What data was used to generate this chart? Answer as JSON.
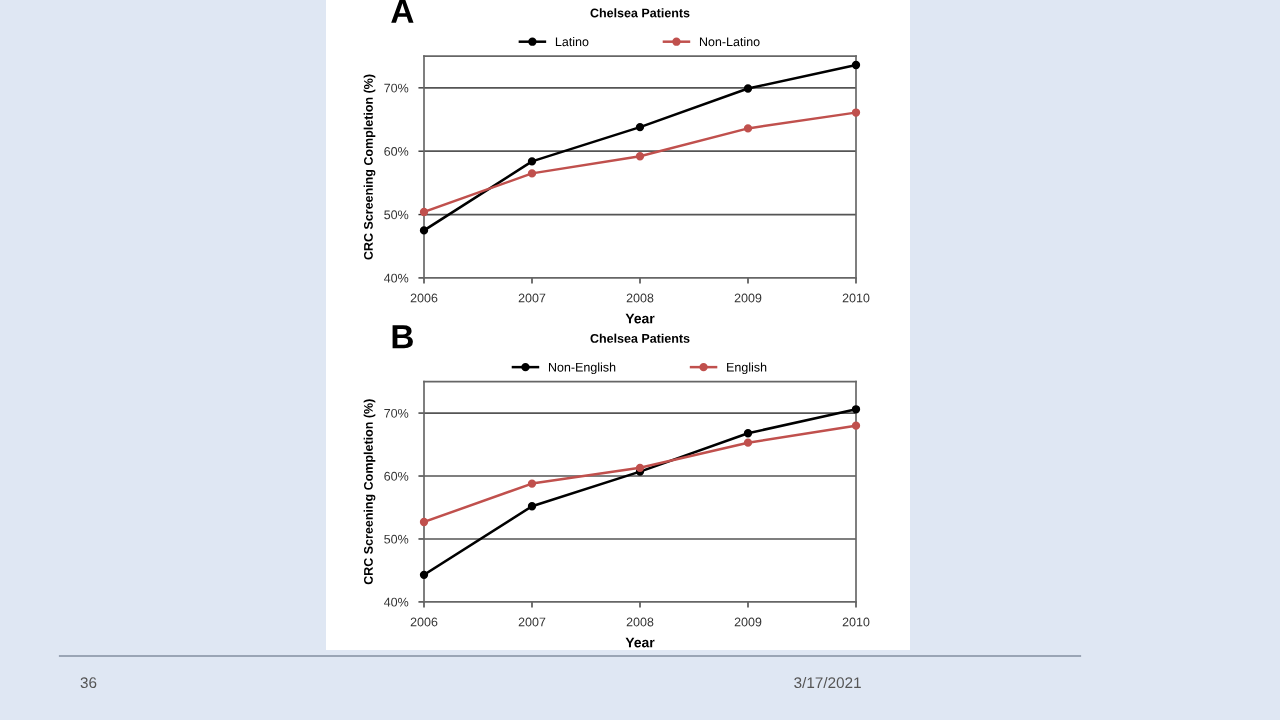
{
  "chart_data": [
    {
      "type": "line",
      "title": "Chelsea Patients",
      "subtitle": "A",
      "xlabel": "Year",
      "ylabel": "CRC Screening Completion (%)",
      "x": [
        2006,
        2007,
        2008,
        2009,
        2010
      ],
      "series": [
        {
          "name": "Latino",
          "color": "#000000",
          "values": [
            47.5,
            58.4,
            63.8,
            69.9,
            73.6
          ]
        },
        {
          "name": "Non-Latino",
          "color": "#c0504d",
          "values": [
            50.4,
            56.5,
            59.2,
            63.6,
            66.1
          ]
        }
      ],
      "xlim": [
        2006,
        2010
      ],
      "xticks": [
        2006,
        2007,
        2008,
        2009,
        2010
      ],
      "ylim": [
        40,
        75
      ],
      "yticks": [
        {
          "value": 40,
          "label": "40%"
        },
        {
          "value": 50,
          "label": "50%"
        },
        {
          "value": 60,
          "label": "60%"
        },
        {
          "value": 70,
          "label": "70%"
        }
      ],
      "grid": "y",
      "legend": "top",
      "marker": "circle",
      "line_style": "solid"
    },
    {
      "type": "line",
      "title": "Chelsea Patients",
      "subtitle": "B",
      "xlabel": "Year",
      "ylabel": "CRC Screening Completion (%)",
      "x": [
        2006,
        2007,
        2008,
        2009,
        2010
      ],
      "series": [
        {
          "name": "Non-English",
          "color": "#000000",
          "values": [
            44.3,
            55.2,
            60.7,
            66.8,
            70.6
          ]
        },
        {
          "name": "English",
          "color": "#c0504d",
          "values": [
            52.7,
            58.8,
            61.3,
            65.3,
            68.0
          ]
        }
      ],
      "xlim": [
        2006,
        2010
      ],
      "xticks": [
        2006,
        2007,
        2008,
        2009,
        2010
      ],
      "ylim": [
        40,
        75
      ],
      "yticks": [
        {
          "value": 40,
          "label": "40%"
        },
        {
          "value": 50,
          "label": "50%"
        },
        {
          "value": 60,
          "label": "60%"
        },
        {
          "value": 70,
          "label": "70%"
        }
      ],
      "grid": "y",
      "legend": "top",
      "marker": "circle",
      "line_style": "solid",
      "annotations": [
        "36",
        "3/17/2021"
      ]
    }
  ]
}
